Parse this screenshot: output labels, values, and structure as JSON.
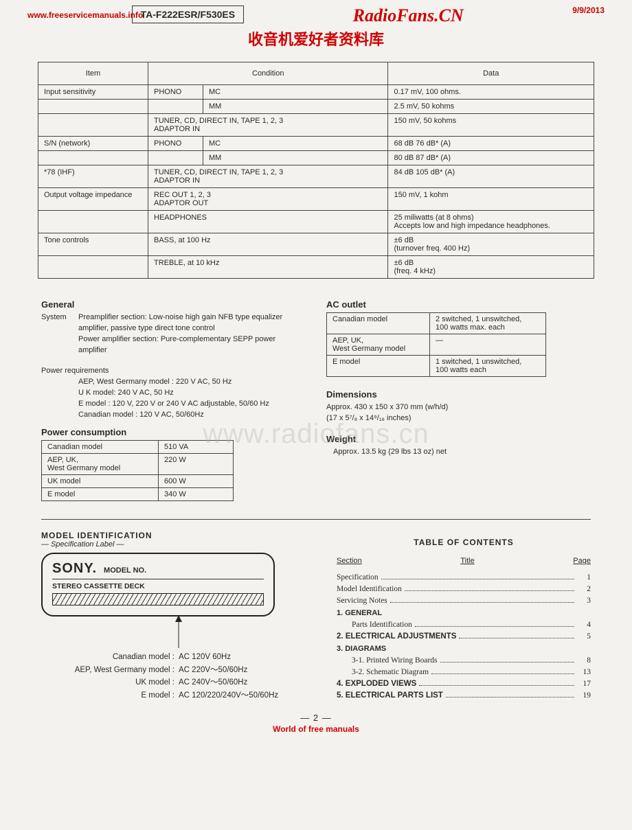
{
  "watermarks": {
    "top_url": "www.freeservicemanuals.info",
    "site_title": "RadioFans.CN",
    "chinese": "收音机爱好者资料库",
    "date": "9/9/2013",
    "ghost": "www.radiofans.cn",
    "footer_pg": "— 2 —",
    "footer_wm": "World of free manuals"
  },
  "model_box": "TA-F222ESR/F530ES",
  "spec_headers": {
    "item": "Item",
    "condition": "Condition",
    "data": "Data"
  },
  "spec_rows": [
    {
      "item": "Input sensitivity",
      "c1": "PHONO",
      "c2": "MC",
      "data": "0.17 mV, 100 ohms."
    },
    {
      "item": "",
      "c1": "",
      "c2": "MM",
      "data": "2.5 mV, 50 kohms"
    },
    {
      "item": "",
      "cfull": "TUNER, CD, DIRECT IN, TAPE 1, 2, 3\nADAPTOR IN",
      "data": "150 mV, 50 kohms"
    },
    {
      "item": "S/N (network)",
      "c1": "PHONO",
      "c2": "MC",
      "data": "68 dB 76 dB* (A)"
    },
    {
      "item": "",
      "c1": "",
      "c2": "MM",
      "data": "80 dB 87 dB* (A)"
    },
    {
      "item": "*78 (IHF)",
      "cfull": "TUNER, CD, DIRECT IN, TAPE 1, 2, 3\nADAPTOR IN",
      "data": "84 dB 105 dB* (A)"
    },
    {
      "item": "Output voltage impedance",
      "cfull": "REC OUT 1, 2, 3\nADAPTOR OUT",
      "data": "150 mV, 1 kohm"
    },
    {
      "item": "",
      "cfull": "HEADPHONES",
      "data": "25 miliwatts (at 8 ohms)\nAccepts low and high impedance headphones."
    },
    {
      "item": "Tone controls",
      "cfull": "BASS, at 100 Hz",
      "data": "±6 dB\n  (turnover freq. 400 Hz)"
    },
    {
      "item": "",
      "cfull": "TREBLE, at 10 kHz",
      "data": "±6 dB\n  (freq. 4 kHz)"
    }
  ],
  "general": {
    "heading": "General",
    "system_label": "System",
    "system_text": "Preamplifier section: Low-noise high gain NFB type equalizer amplifier, passive type direct tone control\nPower amplifier section: Pure-complementary SEPP power amplifier",
    "power_req_h": "Power requirements",
    "power_req_lines": [
      "AEP, West Germany  model : 220 V AC, 50 Hz",
      "U K  model: 240 V AC, 50 Hz",
      "E  model : 120 V, 220 V or 240 V AC adjustable, 50/60 Hz",
      "Canadian model :  120  V  AC, 50/60Hz"
    ],
    "pc_heading": "Power consumption",
    "pc_rows": [
      [
        "Canadian  model",
        "510 VA"
      ],
      [
        "AEP, UK,\nWest Germany  model",
        "220 W"
      ],
      [
        "UK  model",
        "600 W"
      ],
      [
        "E  model",
        "340 W"
      ]
    ]
  },
  "ac_outlet": {
    "heading": "AC outlet",
    "rows": [
      [
        "Canadian  model",
        "2 switched, 1 unswitched,\n100 watts max. each"
      ],
      [
        "AEP, UK,\nWest Germany  model",
        "—"
      ],
      [
        "E model",
        "1 switched, 1 unswitched,\n100 watts each"
      ]
    ]
  },
  "dimensions": {
    "heading": "Dimensions",
    "l1": "Approx. 430 x 150 x 370 mm (w/h/d)",
    "l2": "(17 x 5⁷/₈ x 14⁹/₁₆ inches)"
  },
  "weight": {
    "heading": "Weight",
    "text": "Approx. 13.5 kg (29 lbs 13 oz) net"
  },
  "model_id": {
    "heading": "MODEL IDENTIFICATION",
    "sub": "— Specification Label —",
    "sony": "SONY.",
    "modelno": "MODEL NO.",
    "deck": "STEREO CASSETTE DECK",
    "rows": [
      [
        "Canadian  model :",
        "AC  120V  60Hz"
      ],
      [
        "AEP, West Germany  model :",
        "AC  220V～50/60Hz"
      ],
      [
        "UK  model :",
        "AC  240V～50/60Hz"
      ],
      [
        "E  model :",
        "AC  120/220/240V～50/60Hz"
      ]
    ]
  },
  "toc": {
    "title": "TABLE  OF  CONTENTS",
    "head_section": "Section",
    "head_title": "Title",
    "head_page": "Page",
    "plain": [
      {
        "label": "Specification",
        "page": "1"
      },
      {
        "label": "Model  Identification",
        "page": "2"
      },
      {
        "label": "Servicing  Notes",
        "page": "3"
      }
    ],
    "s1": "1.  GENERAL",
    "s1_items": [
      {
        "label": "Parts  Identification",
        "page": "4"
      }
    ],
    "s2": {
      "label": "2.  ELECTRICAL  ADJUSTMENTS",
      "page": "5"
    },
    "s3": "3.  DIAGRAMS",
    "s3_items": [
      {
        "label": "3-1. Printed  Wiring  Boards",
        "page": "8"
      },
      {
        "label": "3-2. Schematic  Diagram",
        "page": "13"
      }
    ],
    "s4": {
      "label": "4.  EXPLODED  VIEWS",
      "page": "17"
    },
    "s5": {
      "label": "5.  ELECTRICAL  PARTS  LIST",
      "page": "19"
    }
  }
}
